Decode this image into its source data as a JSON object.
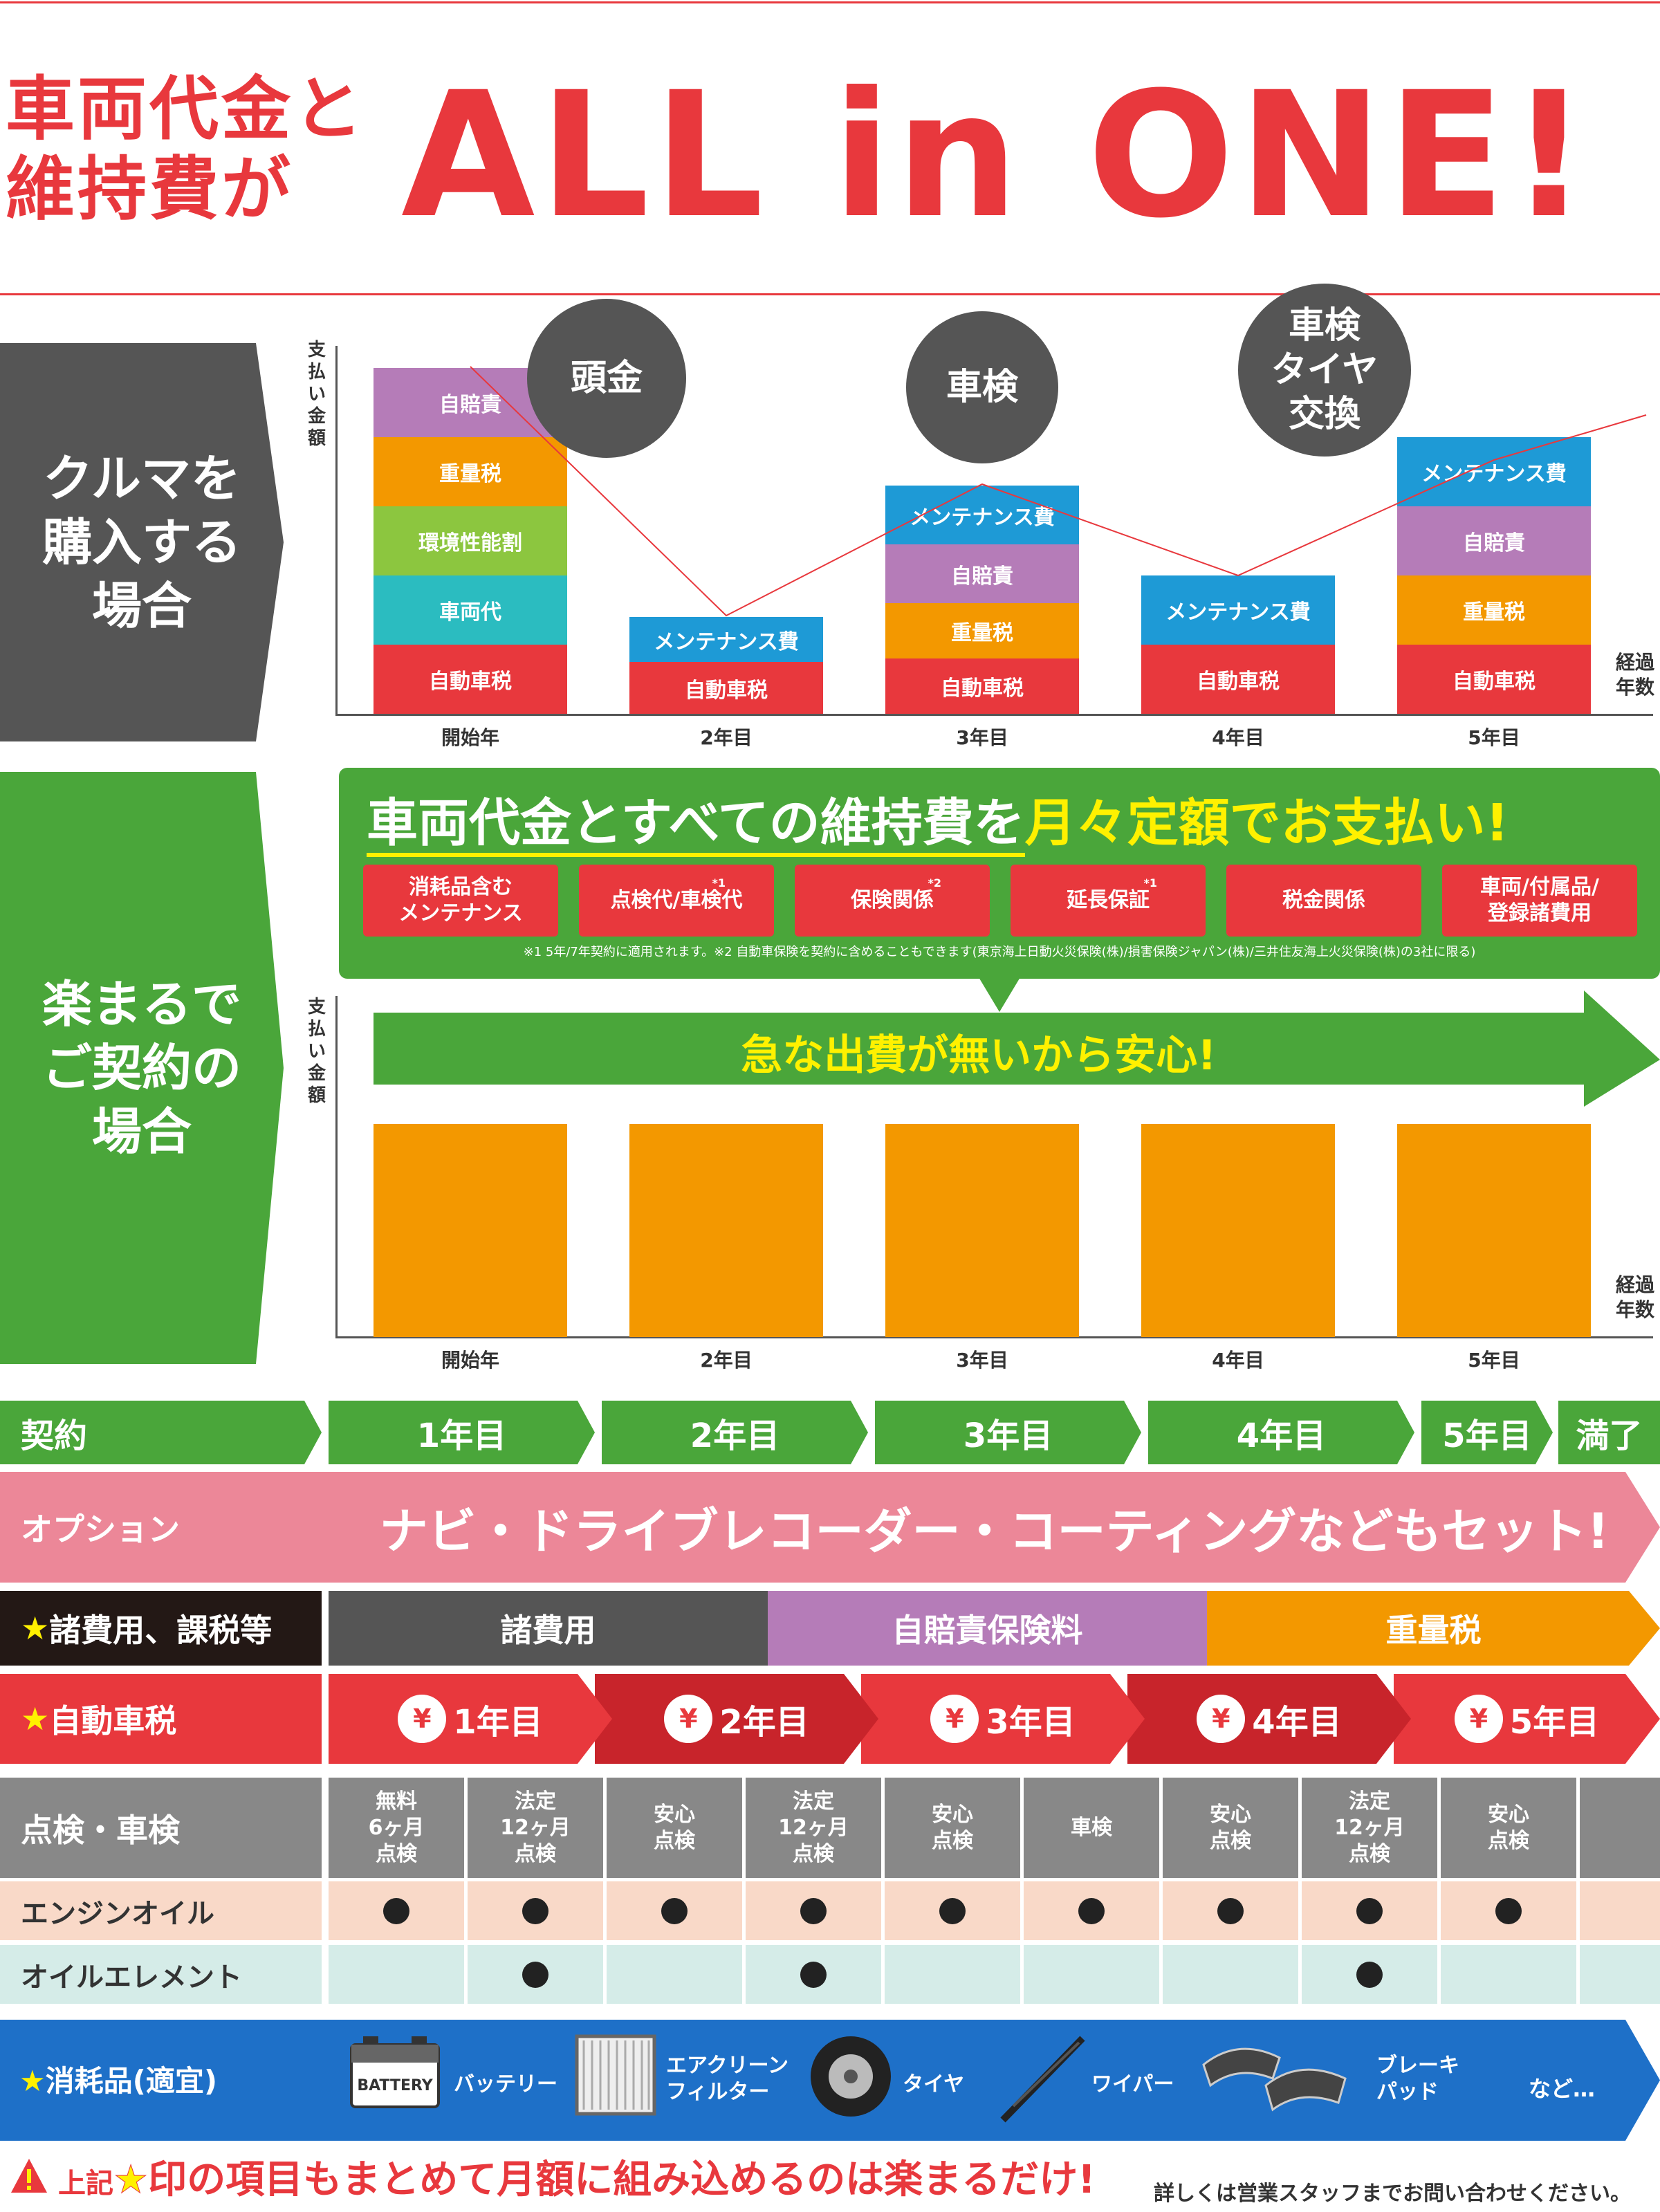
{
  "header": {
    "line1": "車両代金と",
    "line2": "維持費が",
    "headline": "ALL in ONE!"
  },
  "buy": {
    "panel": [
      "クルマを",
      "購入する",
      "場合"
    ],
    "ylabel": [
      "支",
      "払",
      "い",
      "金",
      "額"
    ],
    "xlabel": [
      "経過",
      "年数"
    ],
    "bubbles": {
      "down": "頭金",
      "inspect": "車検",
      "inspect2": [
        "車検",
        "タイヤ",
        "交換"
      ]
    },
    "years": [
      "開始年",
      "2年目",
      "3年目",
      "4年目",
      "5年目"
    ],
    "stacks": [
      [
        "自動車税",
        "車両代",
        "環境性能割",
        "重量税",
        "自賠責"
      ],
      [
        "自動車税",
        "メンテナンス費"
      ],
      [
        "自動車税",
        "重量税",
        "自賠責",
        "メンテナンス費"
      ],
      [
        "自動車税",
        "メンテナンス費"
      ],
      [
        "自動車税",
        "重量税",
        "自賠責",
        "メンテナンス費"
      ]
    ]
  },
  "rakumaru": {
    "panel": [
      "楽まるで",
      "ご契約の",
      "場合"
    ],
    "headline_a": "車両代金とすべての維持費を",
    "headline_b": "月々定額でお支払い!",
    "tags": [
      {
        "text": [
          "消耗品含む",
          "メンテナンス"
        ],
        "note": ""
      },
      {
        "text": [
          "点検代/車検代"
        ],
        "note": "*1"
      },
      {
        "text": [
          "保険関係"
        ],
        "note": "*2"
      },
      {
        "text": [
          "延長保証"
        ],
        "note": "*1"
      },
      {
        "text": [
          "税金関係"
        ],
        "note": ""
      },
      {
        "text": [
          "車両/付属品/",
          "登録諸費用"
        ],
        "note": ""
      }
    ],
    "footnote": "※1 5年/7年契約に適用されます。※2 自動車保険を契約に含めることもできます(東京海上日動火災保険(株)/損害保険ジャパン(株)/三井住友海上火災保険(株)の3社に限る)",
    "arrow_text": "急な出費が無いから安心!",
    "ylabel": [
      "支",
      "払",
      "い",
      "金",
      "額"
    ],
    "xlabel": [
      "経過",
      "年数"
    ],
    "years": [
      "開始年",
      "2年目",
      "3年目",
      "4年目",
      "5年目"
    ]
  },
  "table": {
    "contract": "契約",
    "years": [
      "1年目",
      "2年目",
      "3年目",
      "4年目",
      "5年目",
      "満了"
    ],
    "option_label": "オプション",
    "option_text": "ナビ・ドライブレコーダー・コーティングなどもセット!",
    "fees_label": "諸費用、課税等",
    "fees": [
      "諸費用",
      "自賠責保険料",
      "重量税"
    ],
    "tax_label": "自動車税",
    "tax_years": [
      "1年目",
      "2年目",
      "3年目",
      "4年目",
      "5年目"
    ],
    "yen": "¥",
    "star": "★",
    "inspect_label": "点検・車検",
    "inspections": [
      [
        "無料",
        "6ヶ月",
        "点検"
      ],
      [
        "法定",
        "12ヶ月",
        "点検"
      ],
      [
        "安心",
        "点検"
      ],
      [
        "法定",
        "12ヶ月",
        "点検"
      ],
      [
        "安心",
        "点検"
      ],
      [
        "車検"
      ],
      [
        "安心",
        "点検"
      ],
      [
        "法定",
        "12ヶ月",
        "点検"
      ],
      [
        "安心",
        "点検"
      ],
      []
    ],
    "oil_label": "エンジンオイル",
    "oil": [
      true,
      true,
      true,
      true,
      true,
      true,
      true,
      true,
      true,
      false
    ],
    "element_label": "オイルエレメント",
    "element": [
      false,
      true,
      false,
      true,
      false,
      false,
      false,
      true,
      false,
      false
    ],
    "consumables_label": "消耗品(適宜)",
    "consumables": [
      "バッテリー",
      "エアクリーン\nフィルター",
      "タイヤ",
      "ワイパー",
      "ブレーキ\nパッド",
      "など…"
    ],
    "battery_text": "BATTERY"
  },
  "footer": {
    "a": "上記",
    "b": "印の項目もまとめて月額に組み込めるのは楽まるだけ!",
    "star": "★",
    "contact": "詳しくは営業スタッフまでお問い合わせください。"
  },
  "colors": {
    "red": "#e8383d",
    "green": "#4aa63a",
    "gray": "#555555",
    "orange": "#f39800",
    "purple": "#b57cb8",
    "lime": "#8cc63f",
    "teal": "#2bbcc0",
    "blue": "#1e9ad6",
    "pink": "#ec8798",
    "yellow": "#fff100"
  }
}
